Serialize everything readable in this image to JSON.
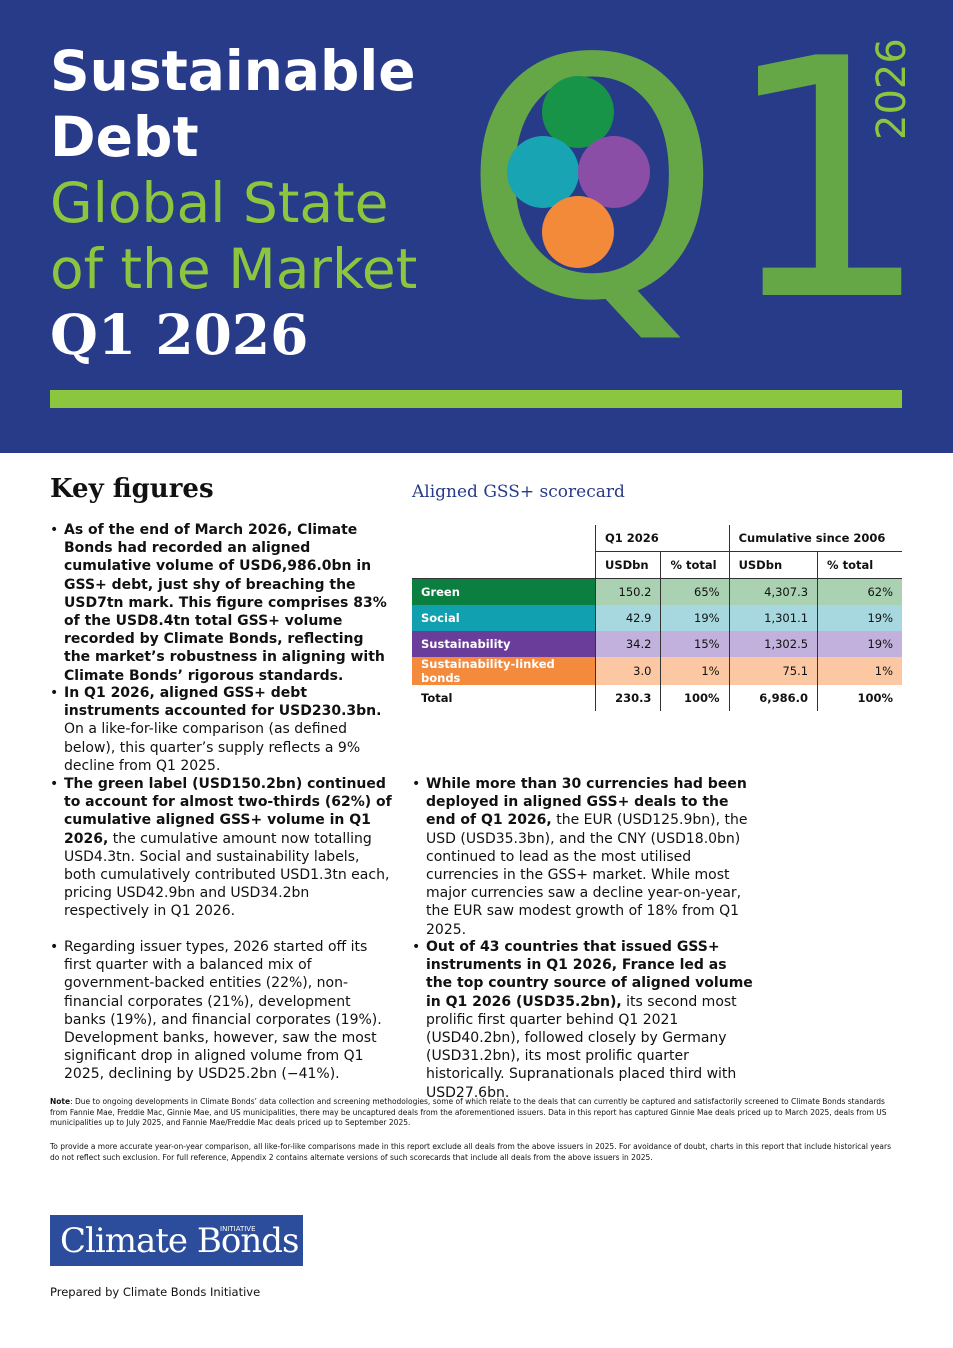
{
  "header": {
    "title_line1": "Sustainable",
    "title_line2": "Debt",
    "subtitle_line1": "Global State",
    "subtitle_line2": "of the Market",
    "edition": "Q1 2026",
    "graphic_text": "Q1",
    "side_year": "2026"
  },
  "key_figures": {
    "heading": "Key figures",
    "left_bullets": [
      {
        "bold": "As of the end of March 2026, Climate Bonds had recorded an aligned cumulative volume of USD6,986.0bn in GSS+ debt, just shy of breaching the USD7tn mark. This figure comprises 83% of the USD8.4tn total GSS+ volume recorded by Climate Bonds, reflecting the market’s robustness in aligning with Climate Bonds’ rigorous standards."
      },
      {
        "bold": "In Q1 2026, aligned GSS+ debt instruments accounted for USD230.3bn.",
        "text": "On a like-for-like comparison (as defined below), this quarter’s supply reflects a 9% decline from Q1 2025."
      },
      {
        "bold": "The green label (USD150.2bn) continued to account for almost two-thirds (62%) of cumulative aligned GSS+ volume in Q1 2026,",
        "text": "the cumulative amount now totalling USD4.3tn. Social and sustainability labels, both cumulatively contributed USD1.3tn each, pricing USD42.9bn and USD34.2bn respectively in Q1 2026."
      },
      {
        "text": "Regarding issuer types, 2026 started off its first quarter with a balanced mix of government-backed entities (22%), non-financial corporates (21%), development banks (19%), and financial corporates (19%). Development banks, however, saw the most significant drop in aligned volume from Q1 2025, declining by USD25.2bn (−41%)."
      }
    ],
    "right_bullets": [
      {
        "bold": "While more than 30 currencies had been deployed in aligned GSS+ deals to the end of Q1 2026,",
        "text": "the EUR (USD125.9bn), the USD (USD35.3bn), and the CNY (USD18.0bn) continued to lead as the most utilised currencies in the GSS+ market. While most major currencies saw a decline year-on-year, the EUR saw modest growth of 18% from Q1 2025."
      },
      {
        "bold": "Out of 43 countries that issued GSS+ instruments in Q1 2026, France led as the top country source of aligned volume in Q1 2026 (USD35.2bn),",
        "text": "its second most prolific first quarter behind Q1 2021 (USD40.2bn), followed closely by Germany (USD31.2bn), its most prolific quarter historically. Supranationals placed third with USD27.6bn."
      }
    ]
  },
  "scorecard": {
    "title": "Aligned GSS+ scorecard",
    "group_headers": [
      "Q1 2026",
      "Cumulative since 2006"
    ],
    "column_headers": [
      "USDbn",
      "% total",
      "USDbn",
      "% total"
    ],
    "rows": [
      [
        "Green",
        "150.2",
        "65%",
        "4,307.3",
        "62%"
      ],
      [
        "Social",
        "42.9",
        "19%",
        "1,301.1",
        "19%"
      ],
      [
        "Sustainability",
        "34.2",
        "15%",
        "1,302.5",
        "19%"
      ],
      [
        "Sustainability-linked bonds",
        "3.0",
        "1%",
        "75.1",
        "1%"
      ],
      [
        "Total",
        "230.3",
        "100%",
        "6,986.0",
        "100%"
      ]
    ]
  },
  "notes": [
    {
      "label": "Note",
      "text": ": Due to ongoing developments in Climate Bonds’ data collection and screening methodologies, some of which relate to the deals that can currently be captured and satisfactorily screened to Climate Bonds standards from Fannie Mae, Freddie Mac, Ginnie Mae, and US municipalities, there may be uncaptured deals from the aforementioned issuers. Data in this report has captured Ginnie Mae deals priced up to March 2025, deals from US municipalities up to July 2025, and Fannie Mae/Freddie Mac deals priced up to September 2025."
    },
    {
      "text": "To provide a more accurate year-on-year comparison, all like-for-like comparisons made in this report exclude all deals from the above issuers in 2025. For avoidance of doubt, charts in this report that include historical years do not reflect such exclusion. For full reference, Appendix 2 contains alternate versions of such scorecards that include all deals from the above issuers in 2025."
    }
  ],
  "footer": {
    "logo_text": "Climate Bonds",
    "logo_small": "INITIATIVE",
    "prepared_by": "Prepared by Climate Bonds Initiative"
  }
}
